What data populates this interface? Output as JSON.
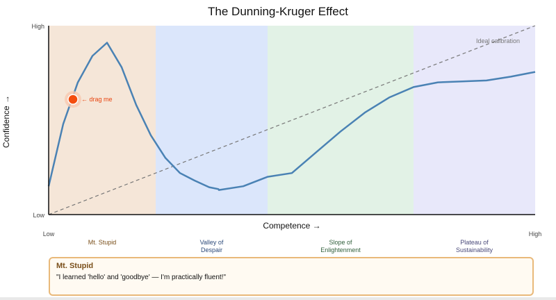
{
  "chart_data": {
    "type": "line",
    "title": "The Dunning-Kruger Effect",
    "xlabel": "Competence →",
    "ylabel": "Confidence →",
    "x_low": "Low",
    "x_high": "High",
    "y_low": "Low",
    "y_high": "High",
    "xlim": [
      0,
      100
    ],
    "ylim": [
      0,
      100
    ],
    "regions": [
      {
        "label": [
          "Mt. Stupid"
        ],
        "from": 0,
        "to": 22,
        "color": "#f5e6d8",
        "label_color": "#7a4f1a"
      },
      {
        "label": [
          "Valley of",
          "Despair"
        ],
        "from": 22,
        "to": 45,
        "color": "#dbe6fb",
        "label_color": "#2c4a7a"
      },
      {
        "label": [
          "Slope of",
          "Enlightenment"
        ],
        "from": 45,
        "to": 75,
        "color": "#e2f2e6",
        "label_color": "#2f5e3a"
      },
      {
        "label": [
          "Plateau of",
          "Sustainability"
        ],
        "from": 75,
        "to": 100,
        "color": "#e8e8fa",
        "label_color": "#4a4a7a"
      }
    ],
    "series": [
      {
        "color": "#4a82b4",
        "x": [
          0,
          3,
          6,
          9,
          12,
          15,
          18,
          21,
          24,
          27,
          30,
          33,
          34.9,
          35,
          40,
          45,
          50,
          55,
          60,
          65,
          70,
          75,
          80,
          85,
          90,
          95,
          100
        ],
        "y": [
          15,
          48,
          70,
          84,
          91,
          78,
          58,
          42,
          30,
          22,
          18,
          14.5,
          13.5,
          13,
          15,
          20,
          22,
          33,
          44,
          54,
          62,
          67.5,
          70,
          70.5,
          71,
          73,
          75.5
        ]
      },
      {
        "name": "Ideal calibration",
        "style": "dashed",
        "color": "#777777",
        "x": [
          0,
          100
        ],
        "y": [
          0,
          100
        ]
      }
    ],
    "annotations": [
      {
        "text": "Ideal calibration",
        "x": 98,
        "y": 92
      },
      {
        "text": "← drag me",
        "x": 5,
        "y": 61
      }
    ],
    "marker": {
      "x": 5,
      "y": 61,
      "color": "#f44d0e"
    },
    "grid": false,
    "legend": "none"
  },
  "info_card": {
    "title": "Mt. Stupid",
    "quote": "\"I learned 'hello' and 'goodbye' — I'm practically fluent!\""
  }
}
